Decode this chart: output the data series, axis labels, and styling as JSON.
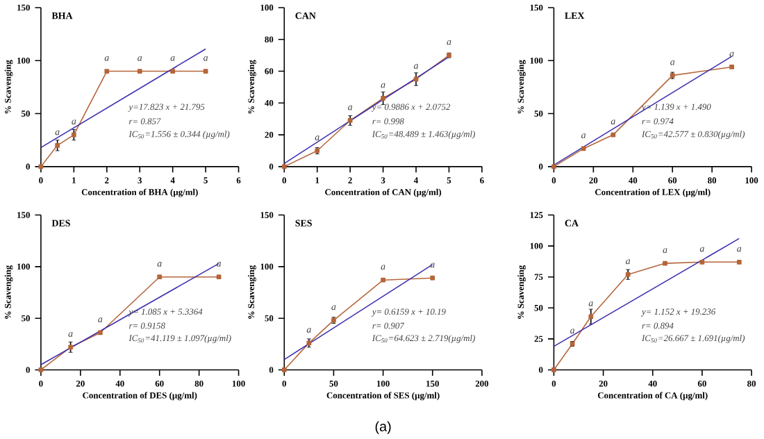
{
  "chart_data": [
    {
      "type": "line",
      "title": "BHA",
      "xlabel": "Concentration of BHA (µg/ml)",
      "ylabel": "% Scavenging",
      "xlim": [
        0,
        6
      ],
      "xticks": [
        0,
        1,
        2,
        3,
        4,
        5,
        6
      ],
      "ylim": [
        0,
        150
      ],
      "yticks": [
        0,
        50,
        100,
        150
      ],
      "series": [
        {
          "type": "line",
          "color": "#b5653a",
          "marker": "square",
          "x": [
            0,
            0.5,
            1,
            2,
            3,
            4,
            5
          ],
          "values": [
            0,
            20,
            30,
            90,
            90,
            90,
            90
          ],
          "errors": [
            0,
            5,
            5,
            1,
            1,
            1,
            1
          ]
        },
        {
          "type": "line",
          "color": "#3b2fb0",
          "marker": "none",
          "x": [
            0,
            5
          ],
          "values": [
            18,
            111
          ]
        }
      ],
      "annotations": [
        "y=17.823 x + 21.795",
        "r= 0.857",
        "IC$_{50}$=1.556 ± 0.344 (µg/ml)",
        {
          "text": "a",
          "x": 0.5,
          "y": 20
        },
        {
          "text": "a",
          "x": 1,
          "y": 30
        },
        {
          "text": "a",
          "x": 2,
          "y": 90
        },
        {
          "text": "a",
          "x": 3,
          "y": 90
        },
        {
          "text": "a",
          "x": 4,
          "y": 90
        },
        {
          "text": "a",
          "x": 5,
          "y": 90
        }
      ]
    },
    {
      "type": "line",
      "title": "CAN",
      "xlabel": "Concentration of  CAN (µg/ml)",
      "ylabel": "% Scavenging",
      "xlim": [
        0,
        6
      ],
      "xticks": [
        0,
        1,
        2,
        3,
        4,
        5,
        6
      ],
      "ylim": [
        0,
        100
      ],
      "yticks": [
        0,
        20,
        40,
        60,
        80,
        100
      ],
      "series": [
        {
          "type": "line",
          "color": "#b5653a",
          "marker": "square",
          "x": [
            0,
            1,
            2,
            3,
            4,
            5
          ],
          "values": [
            0,
            10,
            29,
            43,
            55,
            70
          ],
          "errors": [
            0,
            2,
            3,
            4,
            4,
            1.5
          ]
        },
        {
          "type": "line",
          "color": "#3b2fb0",
          "marker": "none",
          "x": [
            0,
            5
          ],
          "values": [
            2,
            69
          ]
        }
      ],
      "annotations": [
        "y= 0.9886 x + 2.0752",
        "r= 0.998",
        "IC$_{50}$=48.489 ± 1.463(µg/ml)",
        {
          "text": "a",
          "x": 1,
          "y": 10
        },
        {
          "text": "a",
          "x": 2,
          "y": 29
        },
        {
          "text": "a",
          "x": 3,
          "y": 43
        },
        {
          "text": "a",
          "x": 4,
          "y": 55
        },
        {
          "text": "a",
          "x": 5,
          "y": 70
        }
      ]
    },
    {
      "type": "line",
      "title": "LEX",
      "xlabel": "Concentration of  LEX (µg/ml)",
      "ylabel": "% Scavenging",
      "xlim": [
        0,
        100
      ],
      "xticks": [
        0,
        20,
        40,
        60,
        80,
        100
      ],
      "ylim": [
        0,
        150
      ],
      "yticks": [
        0,
        50,
        100,
        150
      ],
      "series": [
        {
          "type": "line",
          "color": "#b5653a",
          "marker": "square",
          "x": [
            0,
            15,
            30,
            60,
            90
          ],
          "values": [
            0,
            17,
            30,
            86,
            94
          ],
          "errors": [
            0,
            1,
            1,
            3,
            1
          ]
        },
        {
          "type": "line",
          "color": "#3b2fb0",
          "marker": "none",
          "x": [
            0,
            90
          ],
          "values": [
            1.5,
            104
          ]
        }
      ],
      "annotations": [
        "y= 1.139 x + 1.490",
        "r= 0.974",
        "IC$_{50}$=42.577 ± 0.830(µg/ml)",
        {
          "text": "a",
          "x": 15,
          "y": 17
        },
        {
          "text": "a",
          "x": 30,
          "y": 30
        },
        {
          "text": "a",
          "x": 60,
          "y": 86
        },
        {
          "text": "a",
          "x": 90,
          "y": 94
        }
      ]
    },
    {
      "type": "line",
      "title": "DES",
      "xlabel": "Concentration of  DES (µg/ml)",
      "ylabel": "% Scavenging",
      "xlim": [
        0,
        100
      ],
      "xticks": [
        0,
        20,
        40,
        60,
        80,
        100
      ],
      "ylim": [
        0,
        150
      ],
      "yticks": [
        0,
        50,
        100,
        150
      ],
      "series": [
        {
          "type": "line",
          "color": "#b5653a",
          "marker": "square",
          "x": [
            0,
            15,
            30,
            60,
            90
          ],
          "values": [
            0,
            22,
            36,
            90,
            90
          ],
          "errors": [
            0,
            5,
            1,
            1,
            1
          ]
        },
        {
          "type": "line",
          "color": "#3b2fb0",
          "marker": "none",
          "x": [
            0,
            90
          ],
          "values": [
            5,
            103
          ]
        }
      ],
      "annotations": [
        "y= 1.085 x + 5.3364",
        "r= 0.9158",
        "IC$_{50}$=41.119 ± 1.097(µg/ml)",
        {
          "text": "a",
          "x": 15,
          "y": 22
        },
        {
          "text": "a",
          "x": 30,
          "y": 36
        },
        {
          "text": "a",
          "x": 60,
          "y": 90
        },
        {
          "text": "a",
          "x": 90,
          "y": 90
        }
      ]
    },
    {
      "type": "line",
      "title": "SES",
      "xlabel": "Concentration of  SES (µg/ml)",
      "ylabel": "% Scavenging",
      "xlim": [
        0,
        200
      ],
      "xticks": [
        0,
        50,
        100,
        150,
        200
      ],
      "ylim": [
        0,
        150
      ],
      "yticks": [
        0,
        50,
        100,
        150
      ],
      "series": [
        {
          "type": "line",
          "color": "#b5653a",
          "marker": "square",
          "x": [
            0,
            25,
            50,
            100,
            150
          ],
          "values": [
            0,
            26,
            48,
            87,
            89
          ],
          "errors": [
            0,
            4,
            3,
            1,
            1
          ]
        },
        {
          "type": "line",
          "color": "#3b2fb0",
          "marker": "none",
          "x": [
            0,
            150
          ],
          "values": [
            10,
            102
          ]
        }
      ],
      "annotations": [
        "y= 0.6159 x + 10.19",
        "r= 0.907",
        "IC$_{50}$=64.623 ± 2.719(µg/ml)",
        "(a)",
        {
          "text": "a",
          "x": 25,
          "y": 26
        },
        {
          "text": "a",
          "x": 50,
          "y": 48
        },
        {
          "text": "a",
          "x": 100,
          "y": 87
        },
        {
          "text": "a",
          "x": 150,
          "y": 89
        }
      ]
    },
    {
      "type": "line",
      "title": "CA",
      "xlabel": "Concentration of CA (µg/ml)",
      "ylabel": "% Scavenging",
      "xlim": [
        0,
        80
      ],
      "xticks": [
        0,
        20,
        40,
        60,
        80
      ],
      "ylim": [
        0,
        125
      ],
      "yticks": [
        0,
        25,
        50,
        75,
        100,
        125
      ],
      "series": [
        {
          "type": "line",
          "color": "#b5653a",
          "marker": "square",
          "x": [
            0,
            7.5,
            15,
            30,
            45,
            60,
            75
          ],
          "values": [
            0,
            21,
            43,
            77,
            86,
            87,
            87
          ],
          "errors": [
            0,
            2,
            6,
            4,
            1,
            1,
            1
          ]
        },
        {
          "type": "line",
          "color": "#3b2fb0",
          "marker": "none",
          "x": [
            0,
            75
          ],
          "values": [
            19,
            106
          ]
        }
      ],
      "annotations": [
        "y= 1.152 x + 19.236",
        "r= 0.894",
        "IC$_{50}$=26.667 ± 1.691(µg/ml)",
        {
          "text": "a",
          "x": 7.5,
          "y": 21
        },
        {
          "text": "a",
          "x": 15,
          "y": 43
        },
        {
          "text": "a",
          "x": 30,
          "y": 77
        },
        {
          "text": "a",
          "x": 45,
          "y": 86
        },
        {
          "text": "a",
          "x": 60,
          "y": 87
        },
        {
          "text": "a",
          "x": 75,
          "y": 87
        }
      ]
    }
  ]
}
